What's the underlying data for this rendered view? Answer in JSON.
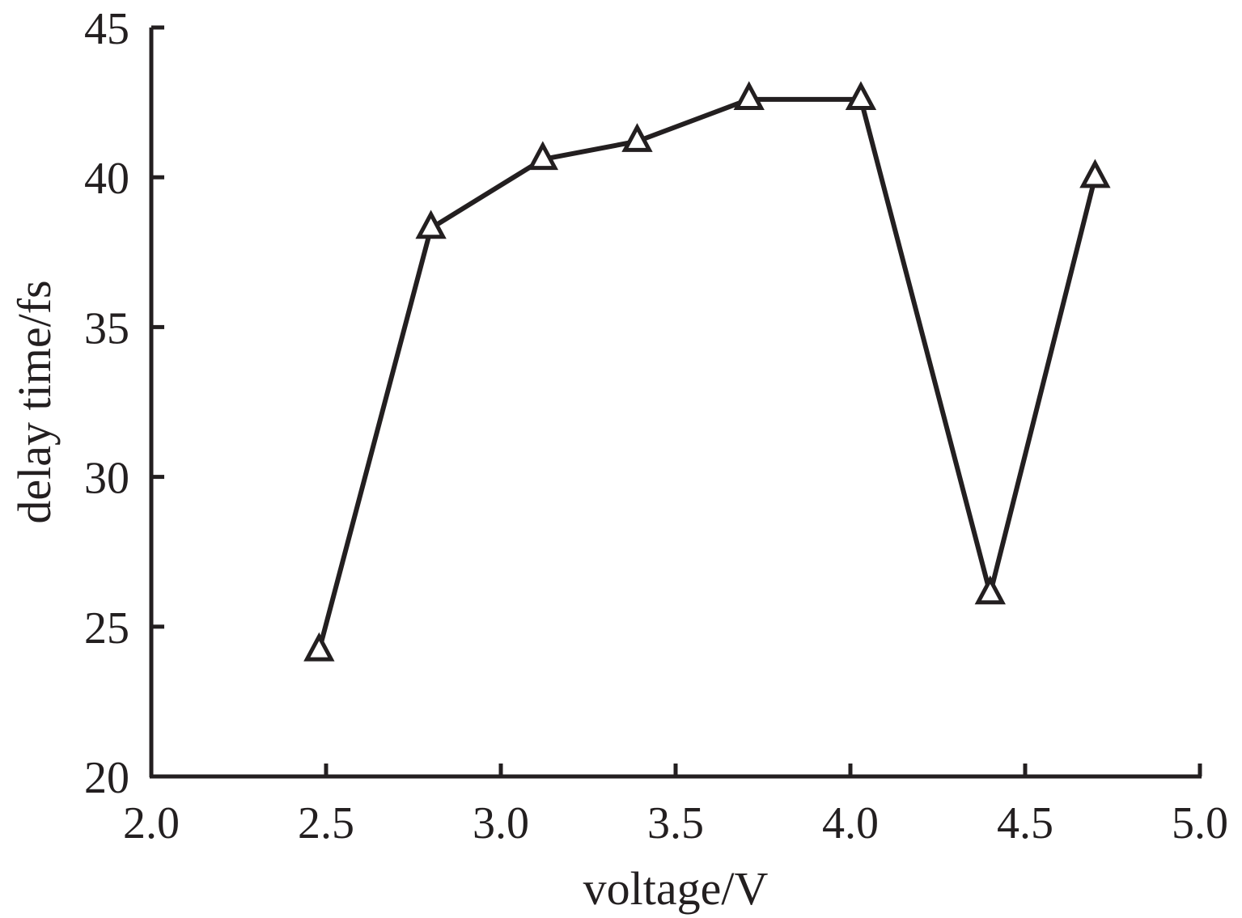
{
  "chart_data": {
    "type": "line",
    "title": "",
    "xlabel": "voltage/V",
    "ylabel": "delay time/fs",
    "xlim": [
      2.0,
      5.0
    ],
    "ylim": [
      20,
      45
    ],
    "xticks": [
      "2.0",
      "2.5",
      "3.0",
      "3.5",
      "4.0",
      "4.5",
      "5.0"
    ],
    "yticks": [
      "20",
      "25",
      "30",
      "35",
      "40",
      "45"
    ],
    "grid": false,
    "legend": "none",
    "series": [
      {
        "marker": "open-triangle",
        "color": "#231f20",
        "x": [
          2.48,
          2.8,
          3.12,
          3.39,
          3.71,
          4.03,
          4.4,
          4.7
        ],
        "y": [
          24.2,
          38.3,
          40.6,
          41.2,
          42.6,
          42.6,
          26.1,
          40.0
        ]
      }
    ]
  }
}
